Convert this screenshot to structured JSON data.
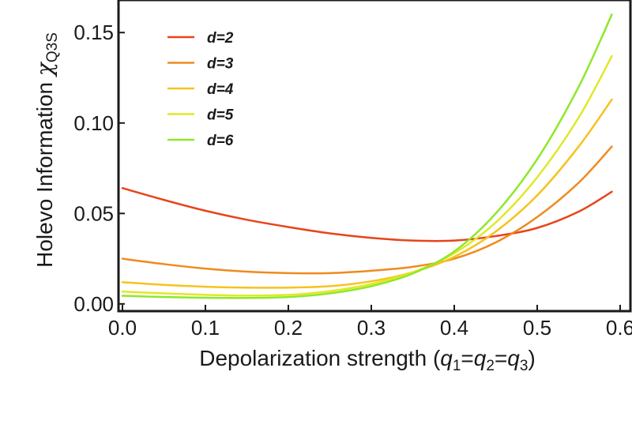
{
  "chart_data": {
    "type": "line",
    "xlabel": {
      "main": "Depolarization strength (",
      "q1": "q",
      "s1": "1",
      "eq1": "=",
      "q2": "q",
      "s2": "2",
      "eq2": "=",
      "q3": "q",
      "s3": "3",
      "close": ")"
    },
    "ylabel": {
      "main": "Holevo Information ",
      "chi": "χ",
      "sub": "Q3S"
    },
    "xlim": [
      0.0,
      0.6
    ],
    "ylim": [
      -0.004,
      0.168
    ],
    "xticks": [
      {
        "value": 0.0,
        "label": "0.0"
      },
      {
        "value": 0.1,
        "label": "0.1"
      },
      {
        "value": 0.2,
        "label": "0.2"
      },
      {
        "value": 0.3,
        "label": "0.3"
      },
      {
        "value": 0.4,
        "label": "0.4"
      },
      {
        "value": 0.5,
        "label": "0.5"
      },
      {
        "value": 0.6,
        "label": "0.6"
      }
    ],
    "yticks": [
      {
        "value": 0.0,
        "label": "0.00"
      },
      {
        "value": 0.05,
        "label": "0.05"
      },
      {
        "value": 0.1,
        "label": "0.10"
      },
      {
        "value": 0.15,
        "label": "0.15"
      }
    ],
    "legend_position": "top-left",
    "grid": false,
    "x": [
      0.0,
      0.05,
      0.1,
      0.15,
      0.2,
      0.25,
      0.3,
      0.35,
      0.4,
      0.45,
      0.5,
      0.55,
      0.59
    ],
    "series": [
      {
        "name": "d=2",
        "color": "#e8441a",
        "values": [
          0.064,
          0.0575,
          0.0515,
          0.0465,
          0.0425,
          0.039,
          0.0365,
          0.035,
          0.035,
          0.0375,
          0.042,
          0.051,
          0.062
        ]
      },
      {
        "name": "d=3",
        "color": "#ef8a1f",
        "values": [
          0.025,
          0.022,
          0.0195,
          0.0178,
          0.017,
          0.017,
          0.0183,
          0.0205,
          0.025,
          0.034,
          0.048,
          0.067,
          0.087
        ]
      },
      {
        "name": "d=4",
        "color": "#f7c21e",
        "values": [
          0.012,
          0.0105,
          0.0095,
          0.009,
          0.009,
          0.0098,
          0.0125,
          0.0175,
          0.026,
          0.04,
          0.06,
          0.087,
          0.113
        ]
      },
      {
        "name": "d=5",
        "color": "#dfe924",
        "values": [
          0.0068,
          0.0058,
          0.005,
          0.0046,
          0.005,
          0.007,
          0.011,
          0.0175,
          0.028,
          0.045,
          0.07,
          0.103,
          0.137
        ]
      },
      {
        "name": "d=6",
        "color": "#8ee82a",
        "values": [
          0.0045,
          0.0038,
          0.0034,
          0.0033,
          0.0038,
          0.0058,
          0.0098,
          0.0168,
          0.029,
          0.05,
          0.08,
          0.12,
          0.16
        ]
      }
    ]
  }
}
